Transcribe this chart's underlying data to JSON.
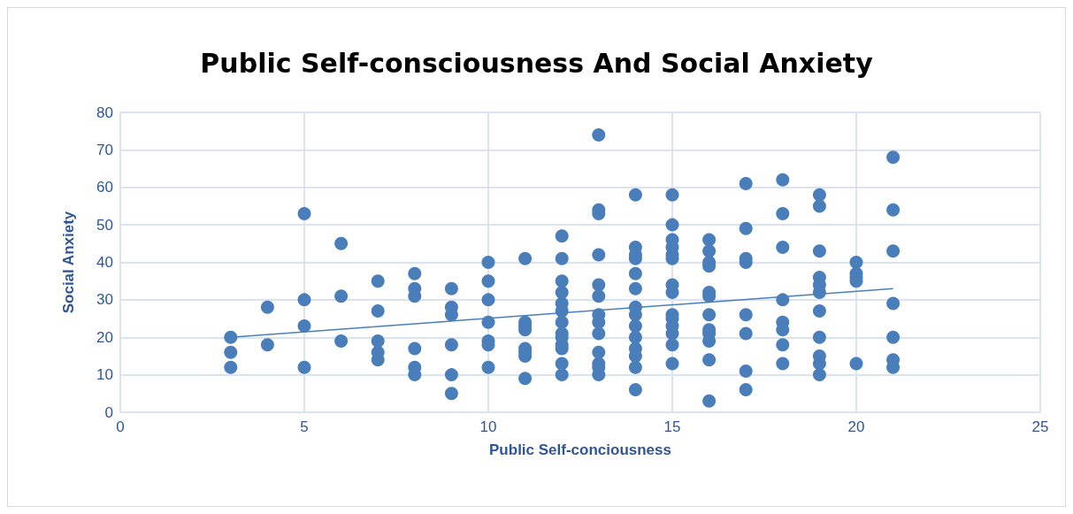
{
  "chart_data": {
    "type": "scatter",
    "title": "Public Self-consciousness And Social Anxiety",
    "xlabel": "Public Self-conciousness",
    "ylabel": "Social Anxiety",
    "xlim": [
      0,
      25
    ],
    "xticks": [
      0,
      5,
      10,
      15,
      20,
      25
    ],
    "ylim": [
      0,
      80
    ],
    "yticks": [
      0,
      10,
      20,
      30,
      40,
      50,
      60,
      70,
      80
    ],
    "grid": true,
    "marker": "circle",
    "series": [
      {
        "color": "#4a7ebb",
        "x": [
          3,
          3,
          3,
          4,
          4,
          5,
          5,
          5,
          5,
          6,
          6,
          6,
          7,
          7,
          7,
          7,
          7,
          8,
          8,
          8,
          8,
          8,
          8,
          9,
          9,
          9,
          9,
          9,
          9,
          10,
          10,
          10,
          10,
          10,
          10,
          10,
          11,
          11,
          11,
          11,
          11,
          11,
          11,
          11,
          12,
          12,
          12,
          12,
          12,
          12,
          12,
          12,
          12,
          12,
          12,
          12,
          12,
          13,
          13,
          13,
          13,
          13,
          13,
          13,
          13,
          13,
          13,
          13,
          13,
          13,
          14,
          14,
          14,
          14,
          14,
          14,
          14,
          14,
          14,
          14,
          14,
          14,
          14,
          14,
          15,
          15,
          15,
          15,
          15,
          15,
          15,
          15,
          15,
          15,
          15,
          15,
          15,
          15,
          16,
          16,
          16,
          16,
          16,
          16,
          16,
          16,
          16,
          16,
          16,
          16,
          17,
          17,
          17,
          17,
          17,
          17,
          17,
          17,
          18,
          18,
          18,
          18,
          18,
          18,
          18,
          18,
          19,
          19,
          19,
          19,
          19,
          19,
          19,
          19,
          19,
          19,
          19,
          20,
          20,
          20,
          20,
          20,
          21,
          21,
          21,
          21,
          21,
          21,
          21
        ],
        "values": [
          20,
          16,
          12,
          28,
          18,
          53,
          30,
          23,
          12,
          45,
          31,
          19,
          35,
          27,
          19,
          16,
          14,
          37,
          33,
          31,
          17,
          12,
          10,
          33,
          28,
          26,
          18,
          10,
          5,
          40,
          35,
          30,
          24,
          19,
          18,
          12,
          41,
          24,
          23,
          22,
          17,
          16,
          15,
          9,
          47,
          41,
          35,
          32,
          29,
          27,
          24,
          21,
          20,
          18,
          17,
          13,
          10,
          74,
          54,
          53,
          42,
          34,
          31,
          26,
          24,
          21,
          16,
          13,
          12,
          10,
          58,
          44,
          42,
          41,
          37,
          33,
          28,
          26,
          23,
          20,
          17,
          15,
          12,
          6,
          58,
          50,
          46,
          44,
          42,
          41,
          34,
          32,
          26,
          25,
          23,
          21,
          18,
          13,
          46,
          43,
          40,
          39,
          32,
          31,
          26,
          22,
          21,
          19,
          14,
          3,
          61,
          49,
          41,
          40,
          26,
          21,
          11,
          6,
          62,
          53,
          44,
          30,
          24,
          22,
          18,
          13,
          58,
          55,
          43,
          36,
          34,
          32,
          27,
          20,
          15,
          13,
          10,
          40,
          37,
          36,
          35,
          13,
          68,
          54,
          43,
          29,
          20,
          14,
          12
        ]
      },
      {
        "type": "line",
        "color": "#4a7ebb",
        "line_style": "solid",
        "marker": "none",
        "x": [
          3,
          21
        ],
        "values": [
          20,
          33
        ]
      }
    ]
  }
}
